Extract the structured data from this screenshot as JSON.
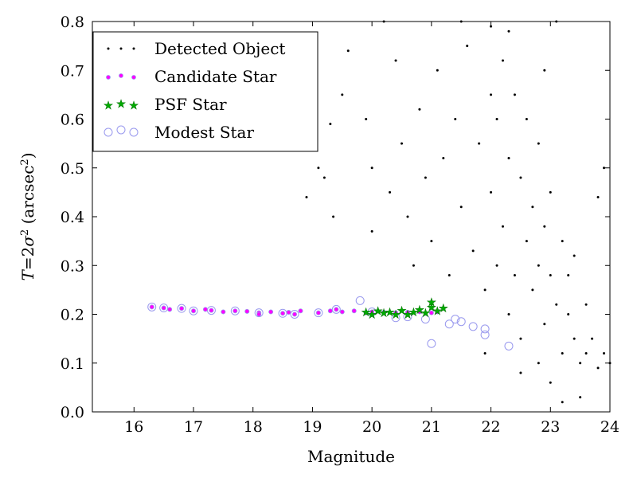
{
  "chart_data": {
    "type": "scatter",
    "xlabel": "Magnitude",
    "ylabel_parts": [
      "T",
      "=",
      "2",
      "σ",
      "2",
      " (arcsec",
      "2",
      ")"
    ],
    "xlim": [
      15.3,
      24
    ],
    "ylim": [
      0,
      0.8
    ],
    "x_ticks": [
      16,
      17,
      18,
      19,
      20,
      21,
      22,
      23,
      24
    ],
    "y_ticks": [
      0.0,
      0.1,
      0.2,
      0.3,
      0.4,
      0.5,
      0.6,
      0.7,
      0.8
    ],
    "x_tick_labels": [
      "16",
      "17",
      "18",
      "19",
      "20",
      "21",
      "22",
      "23",
      "24"
    ],
    "y_tick_labels": [
      "0.0",
      "0.1",
      "0.2",
      "0.3",
      "0.4",
      "0.5",
      "0.6",
      "0.7",
      "0.8"
    ],
    "grid": false,
    "legend_position": "top-left",
    "series": [
      {
        "name": "Detected Object",
        "marker": "dot",
        "color": "#000000",
        "points": [
          [
            18.9,
            0.44
          ],
          [
            19.1,
            0.5
          ],
          [
            19.2,
            0.48
          ],
          [
            19.3,
            0.59
          ],
          [
            19.35,
            0.4
          ],
          [
            19.5,
            0.65
          ],
          [
            19.6,
            0.74
          ],
          [
            19.9,
            0.6
          ],
          [
            20.0,
            0.5
          ],
          [
            20.0,
            0.37
          ],
          [
            20.2,
            0.8
          ],
          [
            20.3,
            0.45
          ],
          [
            20.4,
            0.72
          ],
          [
            20.5,
            0.55
          ],
          [
            20.6,
            0.4
          ],
          [
            20.7,
            0.3
          ],
          [
            20.8,
            0.62
          ],
          [
            20.9,
            0.48
          ],
          [
            21.0,
            0.35
          ],
          [
            21.1,
            0.7
          ],
          [
            21.2,
            0.52
          ],
          [
            21.3,
            0.28
          ],
          [
            21.4,
            0.6
          ],
          [
            21.5,
            0.42
          ],
          [
            21.6,
            0.75
          ],
          [
            21.7,
            0.33
          ],
          [
            21.8,
            0.55
          ],
          [
            21.9,
            0.25
          ],
          [
            22.0,
            0.79
          ],
          [
            22.0,
            0.45
          ],
          [
            22.1,
            0.6
          ],
          [
            22.1,
            0.3
          ],
          [
            22.2,
            0.72
          ],
          [
            22.2,
            0.38
          ],
          [
            22.3,
            0.52
          ],
          [
            22.3,
            0.2
          ],
          [
            22.4,
            0.65
          ],
          [
            22.4,
            0.28
          ],
          [
            22.5,
            0.48
          ],
          [
            22.5,
            0.15
          ],
          [
            22.6,
            0.6
          ],
          [
            22.6,
            0.35
          ],
          [
            22.7,
            0.25
          ],
          [
            22.7,
            0.42
          ],
          [
            22.8,
            0.55
          ],
          [
            22.8,
            0.3
          ],
          [
            22.9,
            0.18
          ],
          [
            22.9,
            0.38
          ],
          [
            23.0,
            0.28
          ],
          [
            23.0,
            0.45
          ],
          [
            23.1,
            0.22
          ],
          [
            23.1,
            0.8
          ],
          [
            23.2,
            0.35
          ],
          [
            23.2,
            0.12
          ],
          [
            23.3,
            0.28
          ],
          [
            23.3,
            0.2
          ],
          [
            23.4,
            0.15
          ],
          [
            23.4,
            0.32
          ],
          [
            23.5,
            0.1
          ],
          [
            23.5,
            0.03
          ],
          [
            23.6,
            0.22
          ],
          [
            23.6,
            0.12
          ],
          [
            23.7,
            0.15
          ],
          [
            23.8,
            0.09
          ],
          [
            23.8,
            0.44
          ],
          [
            23.9,
            0.12
          ],
          [
            23.9,
            0.5
          ],
          [
            24.0,
            0.1
          ],
          [
            23.2,
            0.02
          ],
          [
            22.5,
            0.08
          ],
          [
            21.9,
            0.12
          ],
          [
            22.9,
            0.7
          ],
          [
            21.5,
            0.8
          ],
          [
            22.0,
            0.65
          ],
          [
            22.3,
            0.78
          ],
          [
            22.8,
            0.1
          ],
          [
            23.0,
            0.06
          ]
        ]
      },
      {
        "name": "Candidate Star",
        "marker": "circle-small",
        "color": "#ff00ff",
        "points": [
          [
            16.3,
            0.215
          ],
          [
            16.5,
            0.213
          ],
          [
            16.6,
            0.21
          ],
          [
            16.8,
            0.212
          ],
          [
            17.0,
            0.207
          ],
          [
            17.2,
            0.21
          ],
          [
            17.3,
            0.208
          ],
          [
            17.5,
            0.205
          ],
          [
            17.7,
            0.207
          ],
          [
            17.9,
            0.206
          ],
          [
            18.1,
            0.203
          ],
          [
            18.1,
            0.2
          ],
          [
            18.3,
            0.205
          ],
          [
            18.5,
            0.202
          ],
          [
            18.6,
            0.204
          ],
          [
            18.7,
            0.2
          ],
          [
            18.8,
            0.207
          ],
          [
            19.1,
            0.203
          ],
          [
            19.3,
            0.207
          ],
          [
            19.4,
            0.21
          ],
          [
            19.5,
            0.205
          ],
          [
            19.7,
            0.207
          ],
          [
            19.9,
            0.203
          ],
          [
            20.0,
            0.205
          ],
          [
            20.2,
            0.204
          ],
          [
            20.4,
            0.203
          ],
          [
            20.6,
            0.204
          ],
          [
            20.8,
            0.205
          ],
          [
            21.0,
            0.203
          ],
          [
            21.1,
            0.205
          ]
        ]
      },
      {
        "name": "PSF Star",
        "marker": "star",
        "color": "#008000",
        "points": [
          [
            19.9,
            0.205
          ],
          [
            20.0,
            0.2
          ],
          [
            20.1,
            0.207
          ],
          [
            20.2,
            0.203
          ],
          [
            20.3,
            0.205
          ],
          [
            20.4,
            0.2
          ],
          [
            20.5,
            0.208
          ],
          [
            20.6,
            0.2
          ],
          [
            20.7,
            0.205
          ],
          [
            20.8,
            0.21
          ],
          [
            20.9,
            0.203
          ],
          [
            21.0,
            0.215
          ],
          [
            21.0,
            0.225
          ],
          [
            21.1,
            0.207
          ],
          [
            21.2,
            0.213
          ]
        ]
      },
      {
        "name": "Modest Star",
        "marker": "circle-open",
        "color": "#9999ee",
        "points": [
          [
            16.3,
            0.215
          ],
          [
            16.5,
            0.213
          ],
          [
            16.8,
            0.212
          ],
          [
            17.0,
            0.207
          ],
          [
            17.3,
            0.208
          ],
          [
            17.7,
            0.207
          ],
          [
            18.1,
            0.203
          ],
          [
            18.5,
            0.202
          ],
          [
            18.7,
            0.2
          ],
          [
            19.1,
            0.203
          ],
          [
            19.4,
            0.21
          ],
          [
            19.8,
            0.228
          ],
          [
            20.0,
            0.205
          ],
          [
            20.4,
            0.193
          ],
          [
            20.6,
            0.195
          ],
          [
            20.9,
            0.19
          ],
          [
            21.0,
            0.14
          ],
          [
            21.3,
            0.18
          ],
          [
            21.5,
            0.185
          ],
          [
            21.7,
            0.175
          ],
          [
            21.9,
            0.17
          ],
          [
            21.9,
            0.158
          ],
          [
            22.3,
            0.135
          ],
          [
            21.4,
            0.19
          ]
        ]
      }
    ]
  },
  "legend": {
    "items": [
      {
        "label": "Detected Object"
      },
      {
        "label": "Candidate Star"
      },
      {
        "label": "PSF Star"
      },
      {
        "label": "Modest Star"
      }
    ]
  }
}
